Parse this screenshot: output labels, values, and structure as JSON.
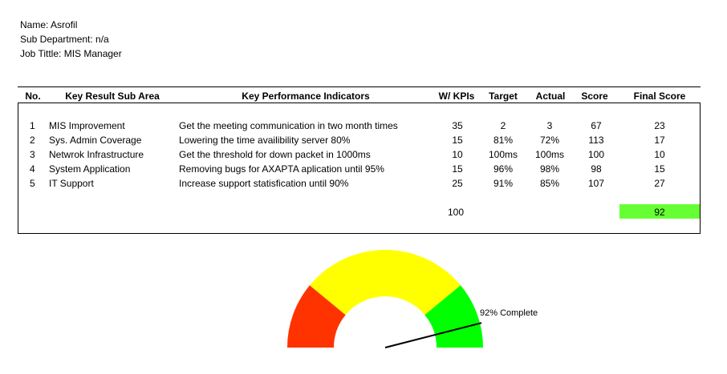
{
  "employee": {
    "name_line": "Name: Asrofil",
    "subdept_line": "Sub Department: n/a",
    "jobtitle_line": "Job Tittle: MIS Manager"
  },
  "table": {
    "headers": {
      "no": "No.",
      "area": "Key Result Sub Area",
      "kpi": "Key Performance Indicators",
      "weight": "W/ KPIs",
      "target": "Target",
      "actual": "Actual",
      "score": "Score",
      "final": "Final Score"
    },
    "rows": [
      {
        "no": "1",
        "area": "MIS Improvement",
        "kpi": "Get the meeting communication in two month times",
        "weight": "35",
        "target": "2",
        "actual": "3",
        "score": "67",
        "final": "23"
      },
      {
        "no": "2",
        "area": "Sys. Admin Coverage",
        "kpi": "Lowering the time availibility server 80%",
        "weight": "15",
        "target": "81%",
        "actual": "72%",
        "score": "113",
        "final": "17"
      },
      {
        "no": "3",
        "area": "Netwrok Infrastructure",
        "kpi": "Get the threshold for down packet in 1000ms",
        "weight": "10",
        "target": "100ms",
        "actual": "100ms",
        "score": "100",
        "final": "10"
      },
      {
        "no": "4",
        "area": "System Application",
        "kpi": "Removing bugs for AXAPTA aplication until 95%",
        "weight": "15",
        "target": "96%",
        "actual": "98%",
        "score": "98",
        "final": "15"
      },
      {
        "no": "5",
        "area": "IT Support",
        "kpi": "Increase support statisfication until 90%",
        "weight": "25",
        "target": "91%",
        "actual": "85%",
        "score": "107",
        "final": "27"
      }
    ],
    "total_weight": "100",
    "total_final": "92",
    "total_final_color": "#66ff33"
  },
  "gauge": {
    "value": 92,
    "label": "92% Complete",
    "colors": {
      "red": "#ff3300",
      "yellow": "#ffff00",
      "green": "#00ff00"
    }
  }
}
